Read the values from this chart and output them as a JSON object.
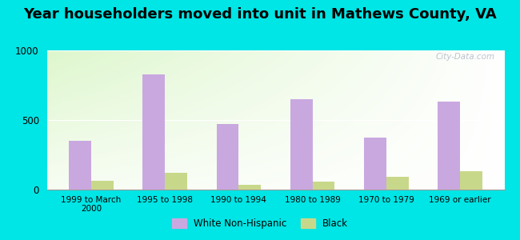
{
  "title": "Year householders moved into unit in Mathews County, VA",
  "categories": [
    "1999 to March\n2000",
    "1995 to 1998",
    "1990 to 1994",
    "1980 to 1989",
    "1970 to 1979",
    "1969 or earlier"
  ],
  "white_values": [
    350,
    830,
    470,
    650,
    375,
    630
  ],
  "black_values": [
    65,
    120,
    35,
    55,
    90,
    130
  ],
  "white_color": "#c9a8e0",
  "black_color": "#c8d88a",
  "ylim": [
    0,
    1000
  ],
  "yticks": [
    0,
    500,
    1000
  ],
  "outer_background": "#00e5e5",
  "bar_width": 0.3,
  "title_fontsize": 13,
  "watermark": "City-Data.com"
}
